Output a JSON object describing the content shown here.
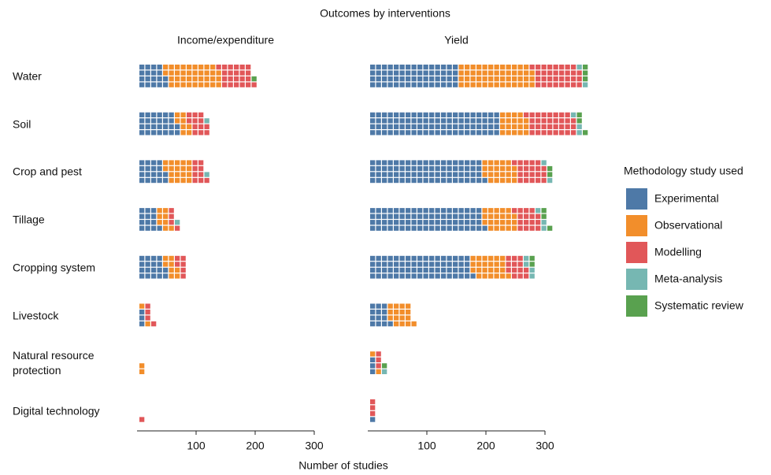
{
  "title": "Outcomes by interventions",
  "xlabel": "Number of studies",
  "legend_title": "Methodology study used",
  "chart_data": [
    {
      "type": "waffle",
      "title": "Income/expenditure",
      "categories": [
        "Water",
        "Soil",
        "Crop and pest",
        "Tillage",
        "Cropping system",
        "Livestock",
        "Natural resource protection",
        "Digital technology"
      ],
      "series": [
        {
          "name": "Experimental",
          "color": "#4e79a7",
          "values": [
            44,
            64,
            44,
            33,
            44,
            8,
            0,
            0
          ]
        },
        {
          "name": "Observational",
          "color": "#f28e2b",
          "values": [
            92,
            20,
            45,
            20,
            20,
            5,
            5,
            0
          ]
        },
        {
          "name": "Modelling",
          "color": "#e15759",
          "values": [
            56,
            29,
            22,
            10,
            16,
            10,
            0,
            2
          ]
        },
        {
          "name": "Meta-analysis",
          "color": "#76b7b2",
          "values": [
            0,
            3,
            3,
            3,
            0,
            0,
            0,
            0
          ]
        },
        {
          "name": "Systematic review",
          "color": "#59a14f",
          "values": [
            3,
            0,
            0,
            0,
            0,
            0,
            0,
            0
          ]
        }
      ],
      "xlim": [
        0,
        300
      ],
      "xticks": [
        100,
        200,
        300
      ]
    },
    {
      "type": "waffle",
      "title": "Yield",
      "categories": [
        "Water",
        "Soil",
        "Crop and pest",
        "Tillage",
        "Cropping system",
        "Livestock",
        "Natural resource protection",
        "Digital technology"
      ],
      "series": [
        {
          "name": "Experimental",
          "color": "#4e79a7",
          "values": [
            150,
            220,
            193,
            193,
            173,
            33,
            8,
            3
          ]
        },
        {
          "name": "Observational",
          "color": "#f28e2b",
          "values": [
            127,
            47,
            54,
            54,
            60,
            40,
            5,
            0
          ]
        },
        {
          "name": "Modelling",
          "color": "#e15759",
          "values": [
            80,
            80,
            50,
            40,
            33,
            0,
            8,
            7
          ]
        },
        {
          "name": "Meta-analysis",
          "color": "#76b7b2",
          "values": [
            5,
            7,
            5,
            7,
            10,
            0,
            3,
            0
          ]
        },
        {
          "name": "Systematic review",
          "color": "#59a14f",
          "values": [
            8,
            7,
            5,
            7,
            5,
            0,
            3,
            0
          ]
        }
      ],
      "xlim": [
        0,
        300
      ],
      "xticks": [
        100,
        200,
        300
      ]
    }
  ]
}
